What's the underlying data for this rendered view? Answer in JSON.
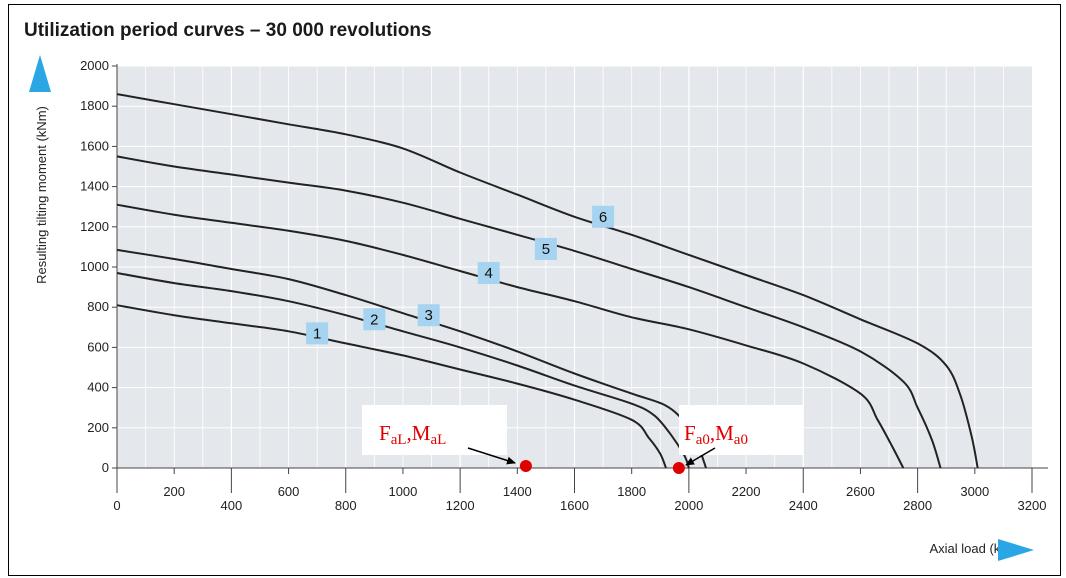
{
  "chart_data": {
    "type": "line",
    "title": "Utilization period curves – 30 000 revolutions",
    "xlabel": "Axial load (kN)",
    "ylabel": "Resulting tilting moment (kNm)",
    "xlim": [
      0,
      3200
    ],
    "ylim": [
      0,
      2000
    ],
    "x_ticks_bottom": [
      "0",
      "400",
      "800",
      "1200",
      "1600",
      "2000",
      "2400",
      "2800",
      "3200"
    ],
    "x_ticks_top": [
      "200",
      "600",
      "1000",
      "1400",
      "1800",
      "2200",
      "2600",
      "3000"
    ],
    "y_ticks": [
      "0",
      "200",
      "400",
      "600",
      "800",
      "1000",
      "1200",
      "1400",
      "1600",
      "1800",
      "2000"
    ],
    "grid": true,
    "series": [
      {
        "name": "1",
        "label_at": [
          700,
          670
        ],
        "points": [
          [
            0,
            810
          ],
          [
            200,
            760
          ],
          [
            400,
            720
          ],
          [
            600,
            680
          ],
          [
            800,
            620
          ],
          [
            1000,
            560
          ],
          [
            1200,
            490
          ],
          [
            1400,
            420
          ],
          [
            1600,
            340
          ],
          [
            1800,
            240
          ],
          [
            1860,
            150
          ],
          [
            1900,
            70
          ],
          [
            1920,
            0
          ]
        ]
      },
      {
        "name": "2",
        "label_at": [
          900,
          740
        ],
        "points": [
          [
            0,
            970
          ],
          [
            200,
            920
          ],
          [
            400,
            880
          ],
          [
            600,
            830
          ],
          [
            800,
            760
          ],
          [
            1000,
            680
          ],
          [
            1200,
            600
          ],
          [
            1400,
            510
          ],
          [
            1600,
            410
          ],
          [
            1800,
            320
          ],
          [
            1880,
            260
          ],
          [
            1940,
            160
          ],
          [
            1985,
            60
          ],
          [
            2000,
            0
          ]
        ]
      },
      {
        "name": "3",
        "label_at": [
          1090,
          760
        ],
        "points": [
          [
            0,
            1085
          ],
          [
            200,
            1040
          ],
          [
            400,
            990
          ],
          [
            600,
            940
          ],
          [
            800,
            860
          ],
          [
            1000,
            770
          ],
          [
            1200,
            680
          ],
          [
            1400,
            580
          ],
          [
            1600,
            470
          ],
          [
            1800,
            370
          ],
          [
            1920,
            310
          ],
          [
            1990,
            220
          ],
          [
            2030,
            120
          ],
          [
            2060,
            0
          ]
        ]
      },
      {
        "name": "4",
        "label_at": [
          1300,
          970
        ],
        "points": [
          [
            0,
            1310
          ],
          [
            200,
            1260
          ],
          [
            400,
            1220
          ],
          [
            600,
            1180
          ],
          [
            800,
            1130
          ],
          [
            1000,
            1060
          ],
          [
            1200,
            980
          ],
          [
            1400,
            900
          ],
          [
            1600,
            830
          ],
          [
            1800,
            750
          ],
          [
            2000,
            690
          ],
          [
            2200,
            610
          ],
          [
            2400,
            520
          ],
          [
            2600,
            370
          ],
          [
            2660,
            240
          ],
          [
            2710,
            110
          ],
          [
            2750,
            0
          ]
        ]
      },
      {
        "name": "5",
        "label_at": [
          1500,
          1090
        ],
        "points": [
          [
            0,
            1550
          ],
          [
            200,
            1500
          ],
          [
            400,
            1460
          ],
          [
            600,
            1420
          ],
          [
            800,
            1380
          ],
          [
            1000,
            1320
          ],
          [
            1200,
            1240
          ],
          [
            1400,
            1160
          ],
          [
            1600,
            1080
          ],
          [
            1800,
            990
          ],
          [
            2000,
            900
          ],
          [
            2200,
            800
          ],
          [
            2400,
            700
          ],
          [
            2600,
            580
          ],
          [
            2750,
            430
          ],
          [
            2800,
            300
          ],
          [
            2850,
            140
          ],
          [
            2880,
            0
          ]
        ]
      },
      {
        "name": "6",
        "label_at": [
          1700,
          1250
        ],
        "points": [
          [
            0,
            1860
          ],
          [
            200,
            1810
          ],
          [
            400,
            1760
          ],
          [
            600,
            1710
          ],
          [
            800,
            1660
          ],
          [
            1000,
            1590
          ],
          [
            1200,
            1470
          ],
          [
            1400,
            1360
          ],
          [
            1600,
            1250
          ],
          [
            1800,
            1160
          ],
          [
            2000,
            1060
          ],
          [
            2200,
            960
          ],
          [
            2400,
            860
          ],
          [
            2600,
            740
          ],
          [
            2800,
            620
          ],
          [
            2900,
            510
          ],
          [
            2950,
            360
          ],
          [
            2990,
            150
          ],
          [
            3010,
            0
          ]
        ]
      }
    ],
    "annotations": [
      {
        "text": "F",
        "sub": "aL",
        "text2": ",M",
        "sub2": "aL",
        "point": [
          1430,
          10
        ],
        "color": "#e00000"
      },
      {
        "text": "F",
        "sub": "a0",
        "text2": ",M",
        "sub2": "a0",
        "point": [
          1965,
          0
        ],
        "color": "#e00000"
      }
    ],
    "colors": {
      "plot_bg": "#e4e8ec",
      "grid": "#ffffff",
      "curve": "#222222",
      "label_box": "#a6d3f0",
      "arrow": "#2aa6e4",
      "point": "#e00000"
    }
  }
}
